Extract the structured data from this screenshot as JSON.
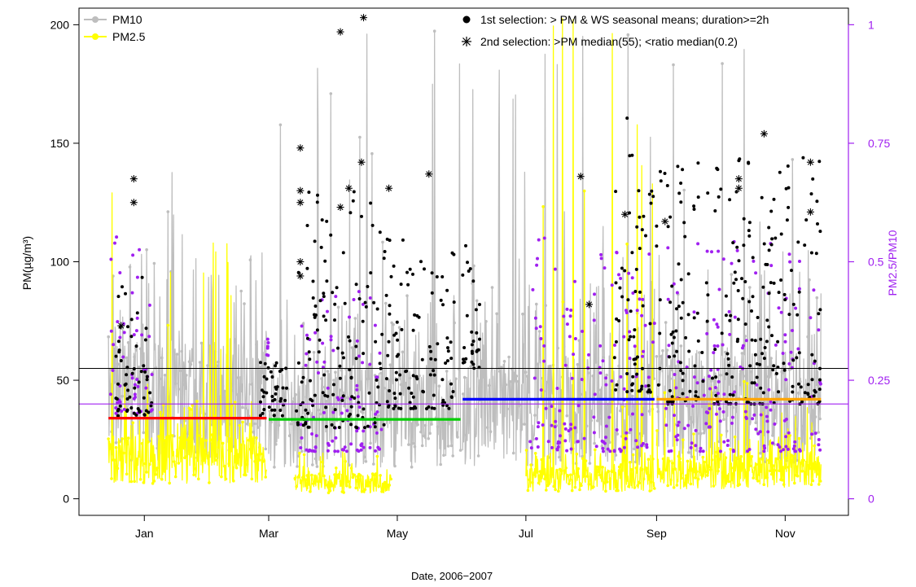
{
  "chart_data": {
    "type": "line",
    "xlabel": "Date, 2006−2007",
    "ylabel_left": "PM(µg/m³)",
    "ylabel_right": "PM2.5/PM10",
    "x_ticks": [
      "Jan",
      "Mar",
      "May",
      "Jul",
      "Sep",
      "Nov"
    ],
    "x_range": [
      "2006-12-01",
      "2007-12-01"
    ],
    "ylim_left": [
      -7,
      207
    ],
    "yticks_left": [
      0,
      50,
      100,
      150,
      200
    ],
    "ylim_right": [
      -0.035,
      1.035
    ],
    "yticks_right": [
      0,
      0.25,
      0.5,
      0.75,
      1
    ],
    "ytick_labels_right": [
      "0",
      "0.25",
      "0.5",
      "0.75",
      "1"
    ],
    "grid": false,
    "legend_left": {
      "position": "top-left",
      "entries": [
        {
          "label": "PM10",
          "color": "#bebebe",
          "marker": "circle"
        },
        {
          "label": "PM2.5",
          "color": "#ffff00",
          "marker": "circle"
        }
      ]
    },
    "legend_right": {
      "position": "top-right",
      "entries": [
        {
          "label": "1st selection: > PM & WS seasonal means; duration>=2h",
          "marker": "filled-circle",
          "color": "#000000"
        },
        {
          "label": "2nd selection: >PM median(55); <ratio median(0.2)",
          "marker": "asterisk",
          "color": "#000000"
        }
      ]
    },
    "reference_lines": [
      {
        "name": "PM median",
        "value": 55,
        "axis": "left",
        "color": "#000000"
      },
      {
        "name": "ratio median",
        "value": 0.2,
        "axis": "right",
        "color": "#a020f0"
      }
    ],
    "seasonal_means": [
      {
        "start": "2006-12-15",
        "end": "2007-02-28",
        "value": 34,
        "color": "#ff0000"
      },
      {
        "start": "2007-03-01",
        "end": "2007-05-31",
        "value": 33.5,
        "color": "#00cd00"
      },
      {
        "start": "2007-06-01",
        "end": "2007-08-31",
        "value": 42,
        "color": "#0000ff"
      },
      {
        "start": "2007-09-01",
        "end": "2007-11-18",
        "value": 42,
        "color": "#ffa500"
      }
    ],
    "series": [
      {
        "name": "PM10",
        "color": "#bebebe",
        "axis": "left",
        "segments": [
          {
            "start": "2006-12-15",
            "end": "2007-02-28",
            "baseline": 45,
            "peak": 140
          },
          {
            "start": "2007-03-01",
            "end": "2007-05-31",
            "baseline": 38,
            "peak": 200
          },
          {
            "start": "2007-06-01",
            "end": "2007-08-31",
            "baseline": 40,
            "peak": 200
          },
          {
            "start": "2007-09-01",
            "end": "2007-11-18",
            "baseline": 42,
            "peak": 200
          }
        ]
      },
      {
        "name": "PM2.5",
        "color": "#ffff00",
        "axis": "left",
        "segments": [
          {
            "start": "2006-12-15",
            "end": "2007-02-28",
            "baseline": 18,
            "peak": 165
          },
          {
            "start": "2007-03-13",
            "end": "2007-04-28",
            "baseline": 7,
            "peak": 25
          },
          {
            "start": "2007-07-01",
            "end": "2007-08-31",
            "baseline": 9,
            "peak": 205
          },
          {
            "start": "2007-09-01",
            "end": "2007-11-18",
            "baseline": 12,
            "peak": 60
          }
        ]
      },
      {
        "name": "1st selection",
        "color": "#000000",
        "axis": "left",
        "marker": "dot",
        "clusters": [
          {
            "start": "2006-12-18",
            "end": "2007-01-05",
            "min": 35,
            "max": 95
          },
          {
            "start": "2007-02-25",
            "end": "2007-03-10",
            "min": 35,
            "max": 62
          },
          {
            "start": "2007-03-14",
            "end": "2007-04-25",
            "min": 30,
            "max": 130
          },
          {
            "start": "2007-04-25",
            "end": "2007-05-28",
            "min": 38,
            "max": 110
          },
          {
            "start": "2007-06-01",
            "end": "2007-06-10",
            "min": 55,
            "max": 115
          },
          {
            "start": "2007-08-12",
            "end": "2007-08-31",
            "min": 45,
            "max": 165
          },
          {
            "start": "2007-09-01",
            "end": "2007-11-18",
            "min": 40,
            "max": 145
          }
        ]
      },
      {
        "name": "2nd selection",
        "color": "#000000",
        "axis": "left",
        "marker": "asterisk",
        "points": [
          [
            "2006-12-27",
            135
          ],
          [
            "2006-12-27",
            125
          ],
          [
            "2006-12-21",
            73
          ],
          [
            "2007-03-16",
            148
          ],
          [
            "2007-03-16",
            130
          ],
          [
            "2007-03-16",
            125
          ],
          [
            "2007-03-16",
            100
          ],
          [
            "2007-03-16",
            94
          ],
          [
            "2007-04-04",
            197
          ],
          [
            "2007-04-04",
            123
          ],
          [
            "2007-04-08",
            131
          ],
          [
            "2007-04-14",
            142
          ],
          [
            "2007-04-15",
            203
          ],
          [
            "2007-04-27",
            131
          ],
          [
            "2007-05-16",
            137
          ],
          [
            "2007-07-27",
            136
          ],
          [
            "2007-07-31",
            82
          ],
          [
            "2007-08-17",
            120
          ],
          [
            "2007-09-05",
            117
          ],
          [
            "2007-10-10",
            135
          ],
          [
            "2007-10-10",
            131
          ],
          [
            "2007-10-22",
            154
          ],
          [
            "2007-11-13",
            142
          ],
          [
            "2007-11-13",
            121
          ]
        ]
      },
      {
        "name": "PM2.5/PM10",
        "color": "#a020f0",
        "axis": "right",
        "marker": "dot",
        "clusters": [
          {
            "start": "2006-12-15",
            "end": "2007-01-05",
            "min": 0.18,
            "max": 0.56
          },
          {
            "start": "2007-02-28",
            "end": "2007-03-01",
            "min": 0.3,
            "max": 0.34
          },
          {
            "start": "2007-03-16",
            "end": "2007-04-25",
            "min": 0.1,
            "max": 0.45
          },
          {
            "start": "2007-07-02",
            "end": "2007-08-31",
            "min": 0.1,
            "max": 0.55
          },
          {
            "start": "2007-09-05",
            "end": "2007-11-18",
            "min": 0.1,
            "max": 0.55
          }
        ]
      }
    ]
  }
}
